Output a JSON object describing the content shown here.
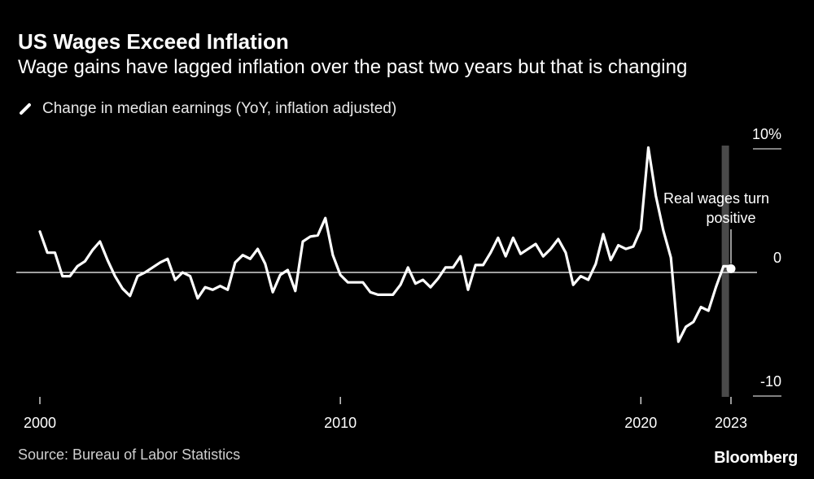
{
  "header": {
    "title": "US Wages Exceed Inflation",
    "subtitle": "Wage gains have lagged inflation over the past two years but that is changing"
  },
  "legend": {
    "label": "Change in median earnings (YoY, inflation adjusted)"
  },
  "footer": {
    "source": "Source: Bureau of Labor Statistics",
    "brand": "Bloomberg"
  },
  "colors": {
    "background": "#000000",
    "line": "#ffffff",
    "highlight_band": "#4a4a4a"
  },
  "chart_data": {
    "type": "line",
    "title": "US Wages Exceed Inflation",
    "subtitle": "Wage gains have lagged inflation over the past two years but that is changing",
    "y_unit": "%",
    "xlim": [
      2000,
      2023.4
    ],
    "ylim": [
      -10,
      10
    ],
    "x_ticks": [
      {
        "value": 2000,
        "label": "2000"
      },
      {
        "value": 2010,
        "label": "2010"
      },
      {
        "value": 2020,
        "label": "2020"
      },
      {
        "value": 2023,
        "label": "2023"
      }
    ],
    "y_ticks": [
      {
        "value": 10,
        "label": "10%"
      },
      {
        "value": 0,
        "label": "0"
      },
      {
        "value": -10,
        "label": "-10"
      }
    ],
    "grid": false,
    "legend_position": "top-left",
    "highlight_band": {
      "x": 2022.8
    },
    "annotation": {
      "line1": "Real wages turn",
      "line2": "positive",
      "x": 2023.0,
      "y": 0.3
    },
    "series": [
      {
        "name": "Change in median earnings (YoY, inflation adjusted)",
        "points": [
          [
            2000.0,
            3.3
          ],
          [
            2000.25,
            1.6
          ],
          [
            2000.5,
            1.6
          ],
          [
            2000.75,
            -0.3
          ],
          [
            2001.0,
            -0.3
          ],
          [
            2001.25,
            0.5
          ],
          [
            2001.5,
            0.9
          ],
          [
            2001.75,
            1.8
          ],
          [
            2002.0,
            2.5
          ],
          [
            2002.25,
            1.0
          ],
          [
            2002.5,
            -0.3
          ],
          [
            2002.75,
            -1.3
          ],
          [
            2003.0,
            -1.9
          ],
          [
            2003.25,
            -0.3
          ],
          [
            2003.5,
            0.0
          ],
          [
            2003.75,
            0.4
          ],
          [
            2004.0,
            0.8
          ],
          [
            2004.25,
            1.1
          ],
          [
            2004.5,
            -0.6
          ],
          [
            2004.75,
            0.0
          ],
          [
            2005.0,
            -0.3
          ],
          [
            2005.25,
            -2.1
          ],
          [
            2005.5,
            -1.2
          ],
          [
            2005.75,
            -1.4
          ],
          [
            2006.0,
            -1.1
          ],
          [
            2006.25,
            -1.4
          ],
          [
            2006.5,
            0.8
          ],
          [
            2006.75,
            1.4
          ],
          [
            2007.0,
            1.1
          ],
          [
            2007.25,
            1.9
          ],
          [
            2007.5,
            0.7
          ],
          [
            2007.75,
            -1.6
          ],
          [
            2008.0,
            -0.2
          ],
          [
            2008.25,
            0.2
          ],
          [
            2008.5,
            -1.5
          ],
          [
            2008.75,
            2.5
          ],
          [
            2009.0,
            2.9
          ],
          [
            2009.25,
            3.0
          ],
          [
            2009.5,
            4.4
          ],
          [
            2009.75,
            1.4
          ],
          [
            2010.0,
            -0.2
          ],
          [
            2010.25,
            -0.8
          ],
          [
            2010.5,
            -0.8
          ],
          [
            2010.75,
            -0.8
          ],
          [
            2011.0,
            -1.6
          ],
          [
            2011.25,
            -1.8
          ],
          [
            2011.5,
            -1.8
          ],
          [
            2011.75,
            -1.8
          ],
          [
            2012.0,
            -1.0
          ],
          [
            2012.25,
            0.4
          ],
          [
            2012.5,
            -0.9
          ],
          [
            2012.75,
            -0.6
          ],
          [
            2013.0,
            -1.2
          ],
          [
            2013.25,
            -0.5
          ],
          [
            2013.5,
            0.4
          ],
          [
            2013.75,
            0.4
          ],
          [
            2014.0,
            1.3
          ],
          [
            2014.25,
            -1.4
          ],
          [
            2014.5,
            0.6
          ],
          [
            2014.75,
            0.6
          ],
          [
            2015.0,
            1.6
          ],
          [
            2015.25,
            2.8
          ],
          [
            2015.5,
            1.3
          ],
          [
            2015.75,
            2.8
          ],
          [
            2016.0,
            1.5
          ],
          [
            2016.25,
            1.9
          ],
          [
            2016.5,
            2.3
          ],
          [
            2016.75,
            1.3
          ],
          [
            2017.0,
            1.9
          ],
          [
            2017.25,
            2.7
          ],
          [
            2017.5,
            1.6
          ],
          [
            2017.75,
            -1.0
          ],
          [
            2018.0,
            -0.3
          ],
          [
            2018.25,
            -0.6
          ],
          [
            2018.5,
            0.7
          ],
          [
            2018.75,
            3.1
          ],
          [
            2019.0,
            1.0
          ],
          [
            2019.25,
            2.2
          ],
          [
            2019.5,
            1.9
          ],
          [
            2019.75,
            2.1
          ],
          [
            2020.0,
            3.5
          ],
          [
            2020.25,
            10.1
          ],
          [
            2020.5,
            6.2
          ],
          [
            2020.75,
            3.4
          ],
          [
            2021.0,
            1.2
          ],
          [
            2021.25,
            -5.6
          ],
          [
            2021.5,
            -4.4
          ],
          [
            2021.75,
            -4.0
          ],
          [
            2022.0,
            -2.8
          ],
          [
            2022.25,
            -3.1
          ],
          [
            2022.5,
            -1.2
          ],
          [
            2022.75,
            0.5
          ],
          [
            2023.0,
            0.5
          ]
        ]
      }
    ]
  }
}
